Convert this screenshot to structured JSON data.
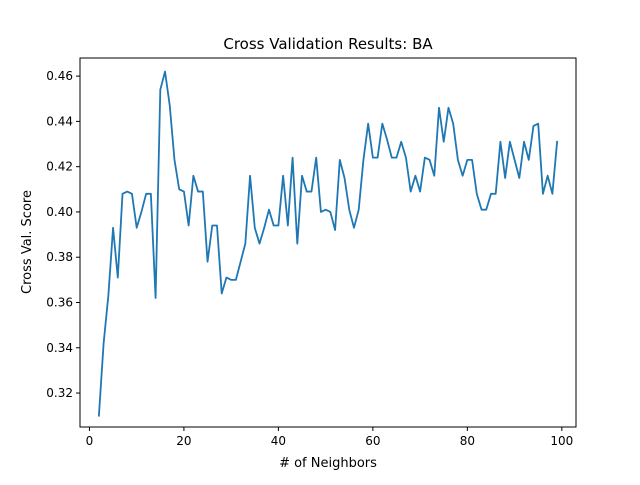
{
  "chart_data": {
    "type": "line",
    "title": "Cross Validation Results: BA",
    "xlabel": "# of Neighbors",
    "ylabel": "Cross Val. Score",
    "xlim": [
      -2,
      103
    ],
    "ylim": [
      0.305,
      0.468
    ],
    "xticks": [
      0,
      20,
      40,
      60,
      80,
      100
    ],
    "xtick_labels": [
      "0",
      "20",
      "40",
      "60",
      "80",
      "100"
    ],
    "yticks": [
      0.32,
      0.34,
      0.36,
      0.38,
      0.4,
      0.42,
      0.44,
      0.46
    ],
    "ytick_labels": [
      "0.32",
      "0.34",
      "0.36",
      "0.38",
      "0.40",
      "0.42",
      "0.44",
      "0.46"
    ],
    "grid": false,
    "series_color": "#1f77b4",
    "x": [
      2,
      3,
      4,
      5,
      6,
      7,
      8,
      9,
      10,
      11,
      12,
      13,
      14,
      15,
      16,
      17,
      18,
      19,
      20,
      21,
      22,
      23,
      24,
      25,
      26,
      27,
      28,
      29,
      30,
      31,
      32,
      33,
      34,
      35,
      36,
      37,
      38,
      39,
      40,
      41,
      42,
      43,
      44,
      45,
      46,
      47,
      48,
      49,
      50,
      51,
      52,
      53,
      54,
      55,
      56,
      57,
      58,
      59,
      60,
      61,
      62,
      63,
      64,
      65,
      66,
      67,
      68,
      69,
      70,
      71,
      72,
      73,
      74,
      75,
      76,
      77,
      78,
      79,
      80,
      81,
      82,
      83,
      84,
      85,
      86,
      87,
      88,
      89,
      90,
      91,
      92,
      93,
      94,
      95,
      96,
      97,
      98,
      99
    ],
    "y": [
      0.31,
      0.342,
      0.363,
      0.393,
      0.371,
      0.408,
      0.409,
      0.408,
      0.393,
      0.4,
      0.408,
      0.408,
      0.362,
      0.454,
      0.462,
      0.447,
      0.423,
      0.41,
      0.409,
      0.394,
      0.416,
      0.409,
      0.409,
      0.378,
      0.394,
      0.394,
      0.364,
      0.371,
      0.37,
      0.37,
      0.378,
      0.386,
      0.416,
      0.393,
      0.386,
      0.393,
      0.401,
      0.394,
      0.394,
      0.416,
      0.394,
      0.424,
      0.386,
      0.416,
      0.409,
      0.409,
      0.424,
      0.4,
      0.401,
      0.4,
      0.392,
      0.423,
      0.415,
      0.401,
      0.393,
      0.401,
      0.423,
      0.439,
      0.424,
      0.424,
      0.439,
      0.432,
      0.424,
      0.424,
      0.431,
      0.424,
      0.409,
      0.416,
      0.409,
      0.424,
      0.423,
      0.416,
      0.446,
      0.431,
      0.446,
      0.439,
      0.423,
      0.416,
      0.423,
      0.423,
      0.408,
      0.401,
      0.401,
      0.408,
      0.408,
      0.431,
      0.415,
      0.431,
      0.423,
      0.415,
      0.431,
      0.423,
      0.438,
      0.439,
      0.408,
      0.416,
      0.408,
      0.431
    ]
  }
}
